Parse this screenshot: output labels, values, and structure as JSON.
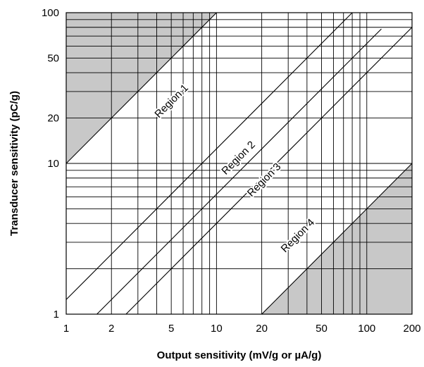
{
  "chart_data": {
    "type": "line",
    "xlabel": "Output sensitivity (mV/g or µA/g)",
    "ylabel": "Transducer sensitivity (pC/g)",
    "xscale": "log",
    "yscale": "log",
    "xlim": [
      1,
      200
    ],
    "ylim": [
      1,
      100
    ],
    "x_ticks": [
      {
        "value": 1,
        "label": "1"
      },
      {
        "value": 2,
        "label": "2"
      },
      {
        "value": 5,
        "label": "5"
      },
      {
        "value": 10,
        "label": "10"
      },
      {
        "value": 20,
        "label": "20"
      },
      {
        "value": 50,
        "label": "50"
      },
      {
        "value": 100,
        "label": "100"
      },
      {
        "value": 200,
        "label": "200"
      }
    ],
    "y_ticks": [
      {
        "value": 1,
        "label": "1"
      },
      {
        "value": 10,
        "label": "10"
      },
      {
        "value": 20,
        "label": "20"
      },
      {
        "value": 50,
        "label": "50"
      },
      {
        "value": 100,
        "label": "100"
      }
    ],
    "grid": true,
    "x_grid": [
      2,
      3,
      4,
      5,
      6,
      7,
      8,
      9,
      10,
      20,
      30,
      40,
      50,
      60,
      70,
      80,
      90,
      100
    ],
    "y_grid": [
      2,
      3,
      4,
      5,
      6,
      7,
      8,
      9,
      10,
      20,
      30,
      40,
      50,
      60,
      70,
      80,
      90
    ],
    "boundary_lines": [
      {
        "x": [
          1,
          10
        ],
        "y": [
          10,
          100
        ]
      },
      {
        "x": [
          1,
          80
        ],
        "y": [
          1.25,
          100
        ]
      },
      {
        "x": [
          1.6,
          125
        ],
        "y": [
          1,
          78
        ]
      },
      {
        "x": [
          2.5,
          200
        ],
        "y": [
          1,
          80
        ]
      },
      {
        "x": [
          20,
          200
        ],
        "y": [
          1,
          10
        ]
      }
    ],
    "shaded_regions": [
      {
        "x": [
          1,
          1,
          10
        ],
        "y": [
          10,
          100,
          100
        ],
        "color": "#c8c8c8"
      },
      {
        "x": [
          20,
          200,
          200
        ],
        "y": [
          1,
          1,
          10
        ],
        "color": "#c8c8c8"
      }
    ],
    "annotations": [
      {
        "text": "Region 1",
        "x": 5.2,
        "y": 25
      },
      {
        "text": "Region 2",
        "x": 14.5,
        "y": 10.5
      },
      {
        "text": "Region 3",
        "x": 21.5,
        "y": 7.5
      },
      {
        "text": "Region 4",
        "x": 36,
        "y": 3.2
      }
    ]
  }
}
